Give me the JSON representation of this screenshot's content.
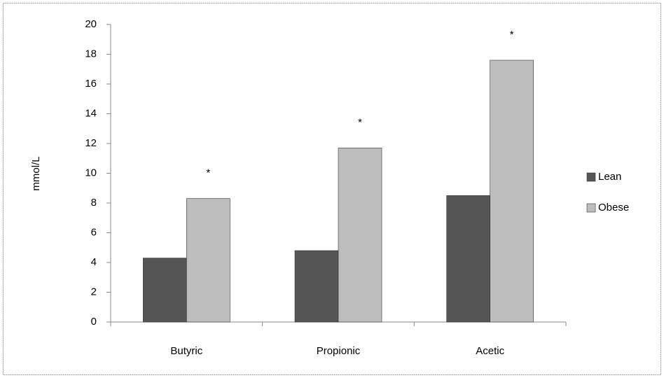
{
  "chart_data": {
    "type": "bar",
    "y_label": "mmol/L",
    "categories": [
      "Butyric",
      "Propionic",
      "Acetic"
    ],
    "series": [
      {
        "name": "Lean",
        "color": "#555555",
        "values": [
          4.3,
          4.8,
          8.5
        ]
      },
      {
        "name": "Obese",
        "color": "#bdbdbd",
        "values": [
          8.3,
          11.7,
          17.6
        ]
      }
    ],
    "annotations": [
      "*",
      "*",
      "*"
    ],
    "ylim": [
      0,
      20
    ],
    "yticks": [
      0,
      2,
      4,
      6,
      8,
      10,
      12,
      14,
      16,
      18,
      20
    ],
    "grid": false,
    "legend": "right"
  }
}
